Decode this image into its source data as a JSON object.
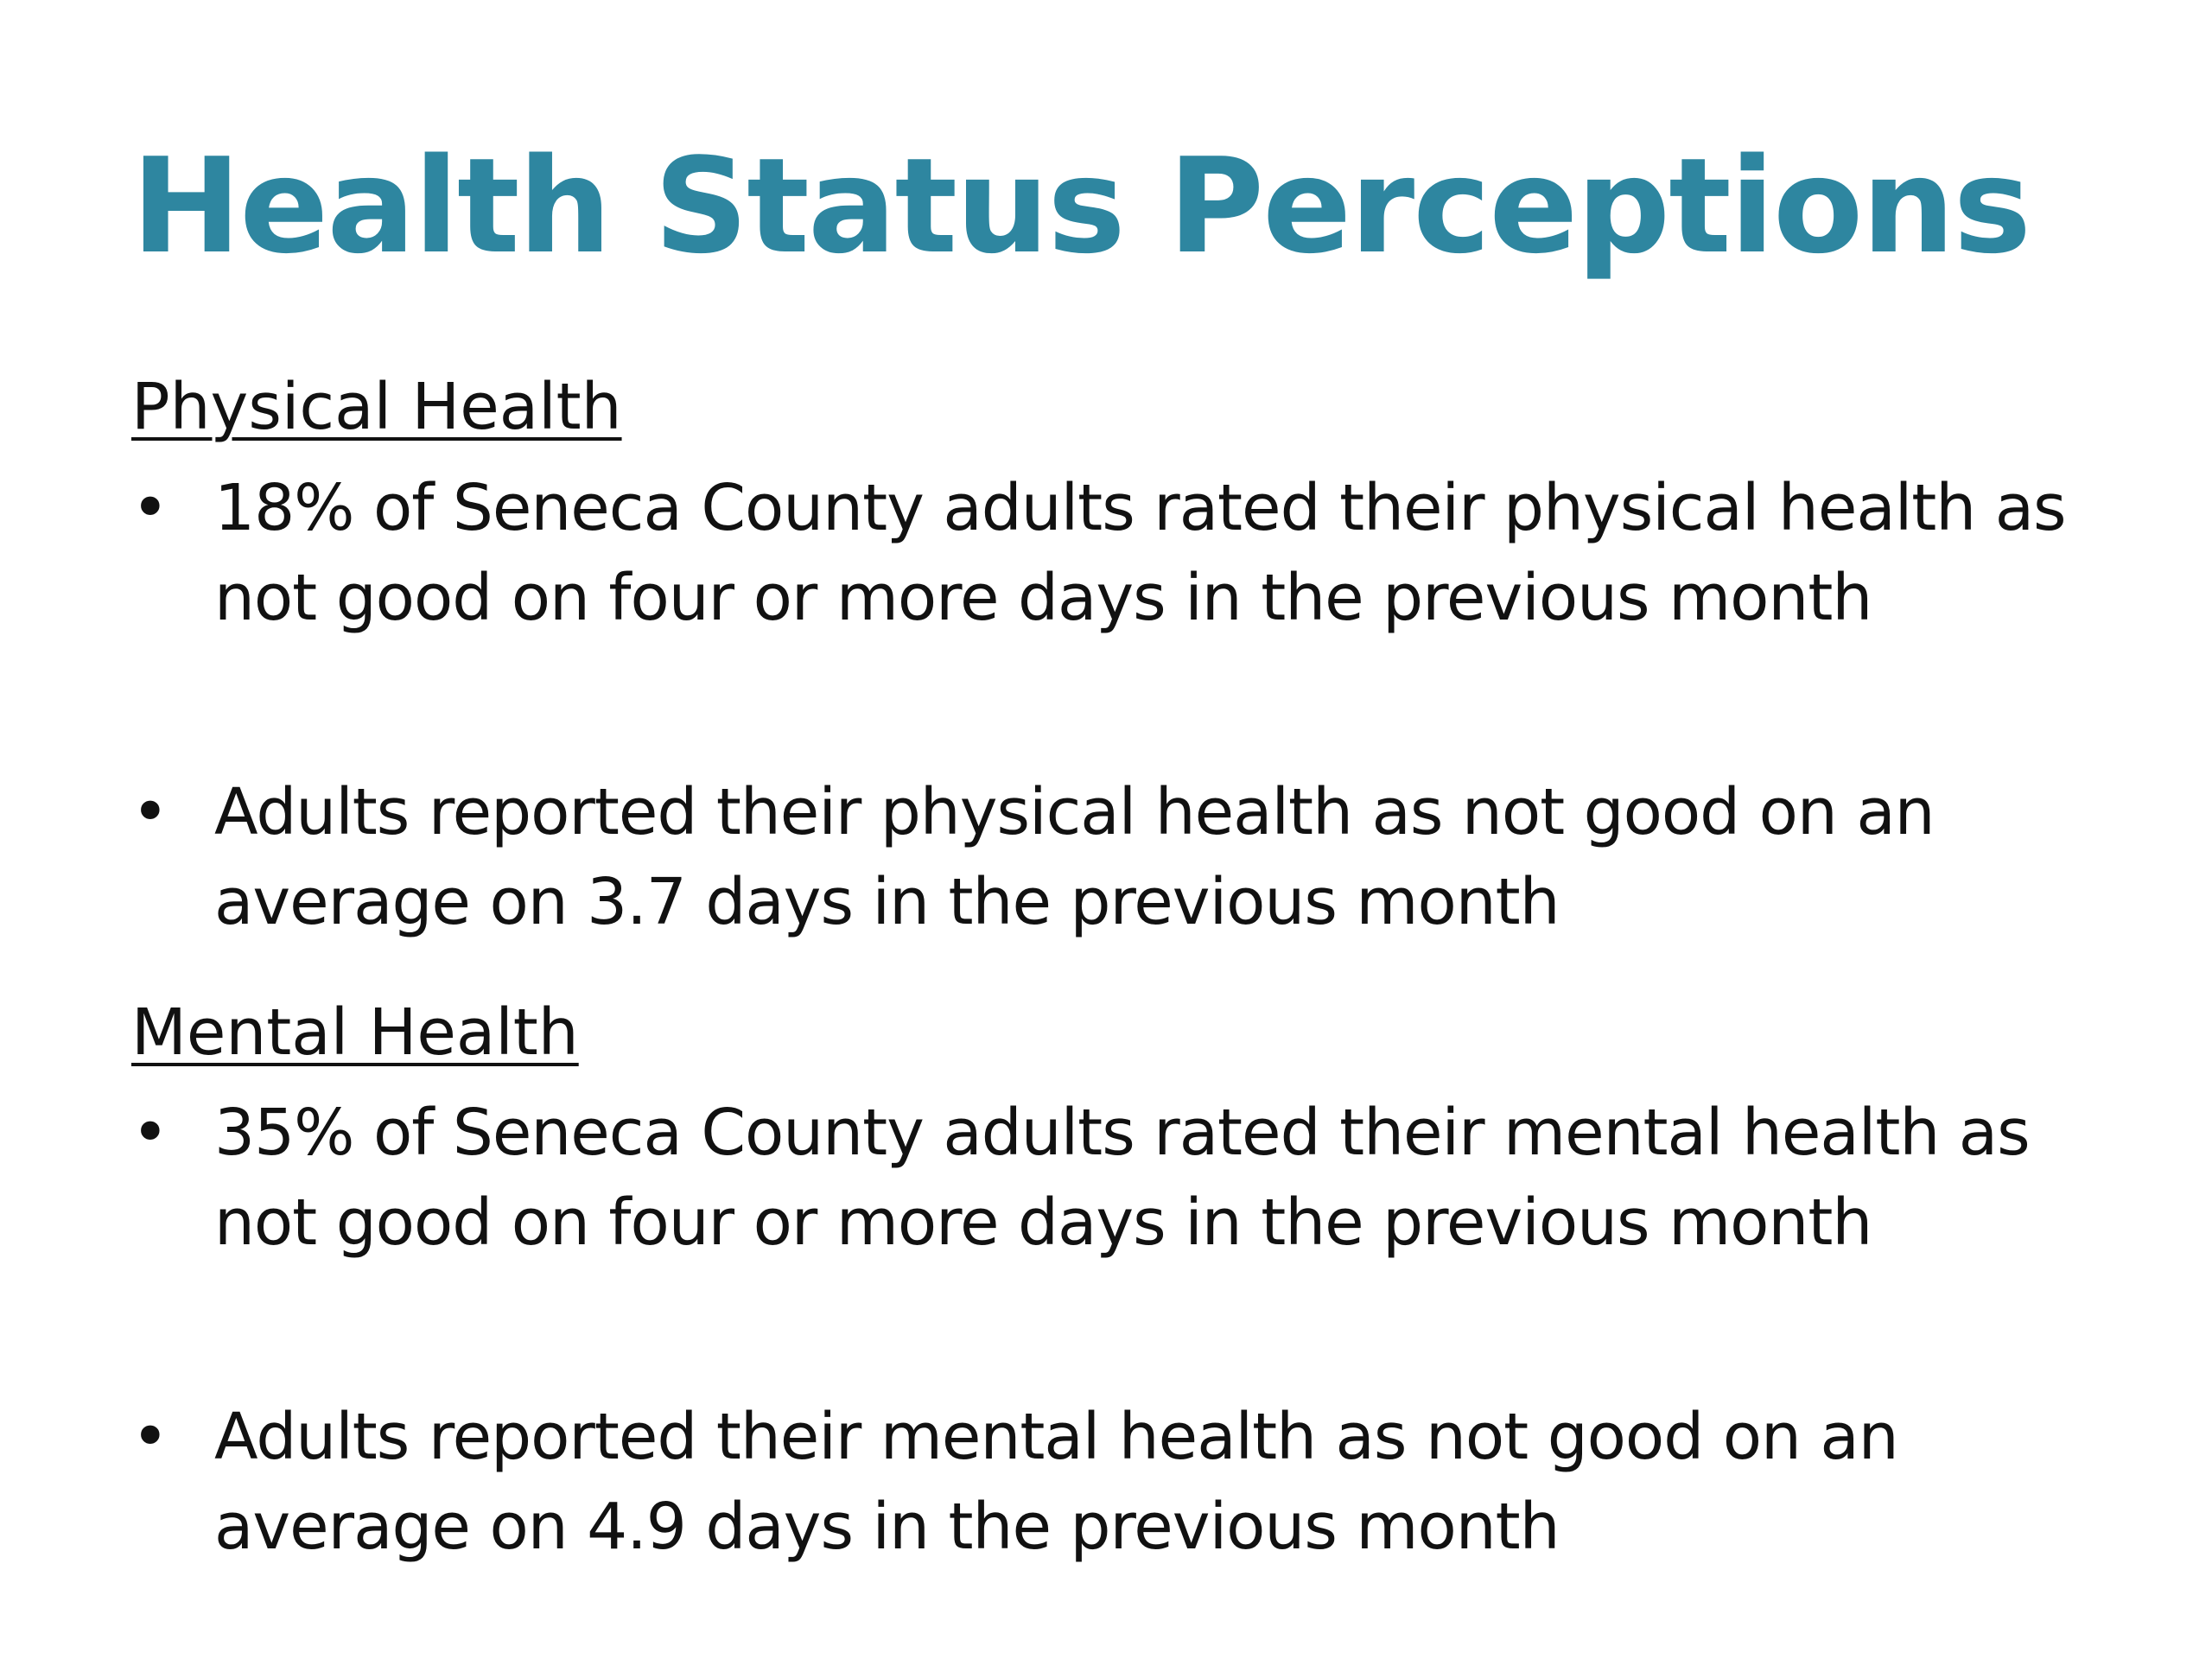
{
  "title": "Health Status Perceptions",
  "accent_color": "#2e86a0",
  "text_color": "#111111",
  "sections": [
    {
      "heading": "Physical Health",
      "bullets": [
        "18% of Seneca County adults rated their physical health as not good on four or more days in the previous month",
        "Adults reported their physical health as not good on an average on 3.7 days in the previous month"
      ]
    },
    {
      "heading": "Mental Health",
      "bullets": [
        "35% of Seneca County adults rated their mental health as not good on four or more days in the previous month",
        "Adults reported their mental health as not good on an average on 4.9 days in the previous month"
      ]
    }
  ],
  "bullet_glyph": "•"
}
